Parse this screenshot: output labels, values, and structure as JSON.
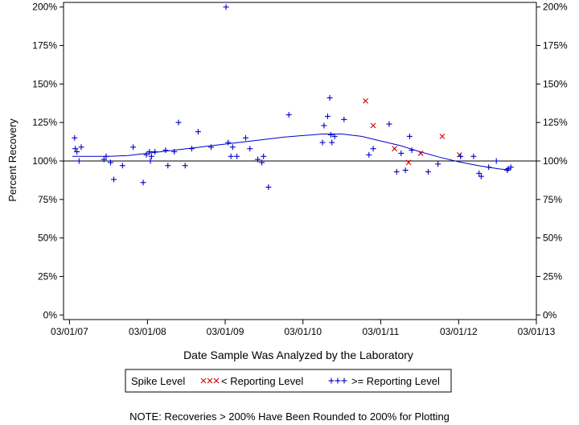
{
  "chart_data": {
    "type": "scatter",
    "xlabel": "Date Sample Was Analyzed by the Laboratory",
    "ylabel": "Percent Recovery",
    "x_tick_labels": [
      "03/01/07",
      "03/01/08",
      "03/01/09",
      "03/01/10",
      "03/01/11",
      "03/01/12",
      "03/01/13"
    ],
    "y_tick_labels": [
      "0%",
      "25%",
      "50%",
      "75%",
      "100%",
      "125%",
      "150%",
      "175%",
      "200%"
    ],
    "xlim": [
      "2007-02-01",
      "2013-03-01"
    ],
    "ylim": [
      -3,
      203
    ],
    "reference_line": 100,
    "grid": false,
    "legend": {
      "title": "Spike Level",
      "entries": [
        "< Reporting Level",
        ">= Reporting Level"
      ],
      "placement": "bottom"
    },
    "note": "NOTE: Recoveries > 200% Have Been Rounded to 200% for Plotting",
    "colors": {
      "below_reporting": "#cc0000",
      "at_or_above_reporting": "#0000cc",
      "trend": "#0000cc",
      "reference": "#000000"
    },
    "series": [
      {
        "name": "< Reporting Level",
        "marker": "x",
        "points": [
          {
            "x": "2010-12-20",
            "y": 139
          },
          {
            "x": "2011-01-25",
            "y": 123
          },
          {
            "x": "2011-05-05",
            "y": 108
          },
          {
            "x": "2011-07-10",
            "y": 99
          },
          {
            "x": "2011-09-05",
            "y": 105
          },
          {
            "x": "2011-12-15",
            "y": 116
          },
          {
            "x": "2012-03-05",
            "y": 104
          }
        ]
      },
      {
        "name": ">= Reporting Level",
        "marker": "+",
        "points": [
          {
            "x": "2007-03-25",
            "y": 115
          },
          {
            "x": "2007-03-28",
            "y": 108
          },
          {
            "x": "2007-04-05",
            "y": 106
          },
          {
            "x": "2007-04-15",
            "y": 100
          },
          {
            "x": "2007-04-25",
            "y": 109
          },
          {
            "x": "2007-08-10",
            "y": 101
          },
          {
            "x": "2007-08-20",
            "y": 103
          },
          {
            "x": "2007-09-10",
            "y": 99
          },
          {
            "x": "2007-09-25",
            "y": 88
          },
          {
            "x": "2007-11-05",
            "y": 97
          },
          {
            "x": "2007-12-25",
            "y": 109
          },
          {
            "x": "2008-02-10",
            "y": 86
          },
          {
            "x": "2008-02-25",
            "y": 104
          },
          {
            "x": "2008-03-10",
            "y": 106
          },
          {
            "x": "2008-03-15",
            "y": 100
          },
          {
            "x": "2008-03-20",
            "y": 103
          },
          {
            "x": "2008-04-05",
            "y": 106
          },
          {
            "x": "2008-05-25",
            "y": 107
          },
          {
            "x": "2008-06-05",
            "y": 97
          },
          {
            "x": "2008-07-05",
            "y": 106
          },
          {
            "x": "2008-07-25",
            "y": 125
          },
          {
            "x": "2008-08-25",
            "y": 97
          },
          {
            "x": "2008-09-25",
            "y": 108
          },
          {
            "x": "2008-10-25",
            "y": 119
          },
          {
            "x": "2008-12-25",
            "y": 109
          },
          {
            "x": "2009-03-05",
            "y": 200
          },
          {
            "x": "2009-03-15",
            "y": 112
          },
          {
            "x": "2009-03-28",
            "y": 103
          },
          {
            "x": "2009-04-05",
            "y": 109
          },
          {
            "x": "2009-04-25",
            "y": 103
          },
          {
            "x": "2009-06-05",
            "y": 115
          },
          {
            "x": "2009-06-25",
            "y": 108
          },
          {
            "x": "2009-08-01",
            "y": 101
          },
          {
            "x": "2009-08-20",
            "y": 99
          },
          {
            "x": "2009-08-28",
            "y": 103
          },
          {
            "x": "2009-09-20",
            "y": 83
          },
          {
            "x": "2009-12-25",
            "y": 130
          },
          {
            "x": "2010-06-01",
            "y": 112
          },
          {
            "x": "2010-06-08",
            "y": 123
          },
          {
            "x": "2010-06-25",
            "y": 129
          },
          {
            "x": "2010-07-05",
            "y": 141
          },
          {
            "x": "2010-07-10",
            "y": 117
          },
          {
            "x": "2010-07-15",
            "y": 112
          },
          {
            "x": "2010-07-28",
            "y": 116
          },
          {
            "x": "2010-09-10",
            "y": 127
          },
          {
            "x": "2011-01-05",
            "y": 104
          },
          {
            "x": "2011-01-25",
            "y": 108
          },
          {
            "x": "2011-04-10",
            "y": 124
          },
          {
            "x": "2011-05-15",
            "y": 93
          },
          {
            "x": "2011-06-05",
            "y": 105
          },
          {
            "x": "2011-06-25",
            "y": 94
          },
          {
            "x": "2011-07-15",
            "y": 116
          },
          {
            "x": "2011-07-25",
            "y": 107
          },
          {
            "x": "2011-10-10",
            "y": 93
          },
          {
            "x": "2011-11-25",
            "y": 98
          },
          {
            "x": "2012-03-10",
            "y": 103
          },
          {
            "x": "2012-05-10",
            "y": 103
          },
          {
            "x": "2012-06-05",
            "y": 92
          },
          {
            "x": "2012-06-15",
            "y": 90
          },
          {
            "x": "2012-07-20",
            "y": 96
          },
          {
            "x": "2012-08-25",
            "y": 100
          },
          {
            "x": "2012-10-15",
            "y": 94
          },
          {
            "x": "2012-10-20",
            "y": 95
          },
          {
            "x": "2012-11-01",
            "y": 96
          }
        ]
      },
      {
        "name": "trend",
        "type": "line",
        "points": [
          {
            "x": "2007-03-15",
            "y": 103
          },
          {
            "x": "2007-06-01",
            "y": 103
          },
          {
            "x": "2007-09-01",
            "y": 103
          },
          {
            "x": "2007-12-01",
            "y": 103.5
          },
          {
            "x": "2008-03-01",
            "y": 105
          },
          {
            "x": "2008-06-01",
            "y": 106.5
          },
          {
            "x": "2008-09-01",
            "y": 108
          },
          {
            "x": "2008-12-01",
            "y": 109.5
          },
          {
            "x": "2009-03-01",
            "y": 111
          },
          {
            "x": "2009-06-01",
            "y": 112.5
          },
          {
            "x": "2009-09-01",
            "y": 114
          },
          {
            "x": "2009-12-01",
            "y": 115.5
          },
          {
            "x": "2010-03-01",
            "y": 116.5
          },
          {
            "x": "2010-06-01",
            "y": 117.5
          },
          {
            "x": "2010-09-01",
            "y": 117.5
          },
          {
            "x": "2010-12-01",
            "y": 116
          },
          {
            "x": "2011-03-01",
            "y": 113
          },
          {
            "x": "2011-06-01",
            "y": 110
          },
          {
            "x": "2011-09-01",
            "y": 106
          },
          {
            "x": "2011-12-01",
            "y": 102.5
          },
          {
            "x": "2012-03-01",
            "y": 99.5
          },
          {
            "x": "2012-06-01",
            "y": 97
          },
          {
            "x": "2012-09-01",
            "y": 95
          },
          {
            "x": "2012-11-01",
            "y": 94
          }
        ]
      }
    ]
  }
}
